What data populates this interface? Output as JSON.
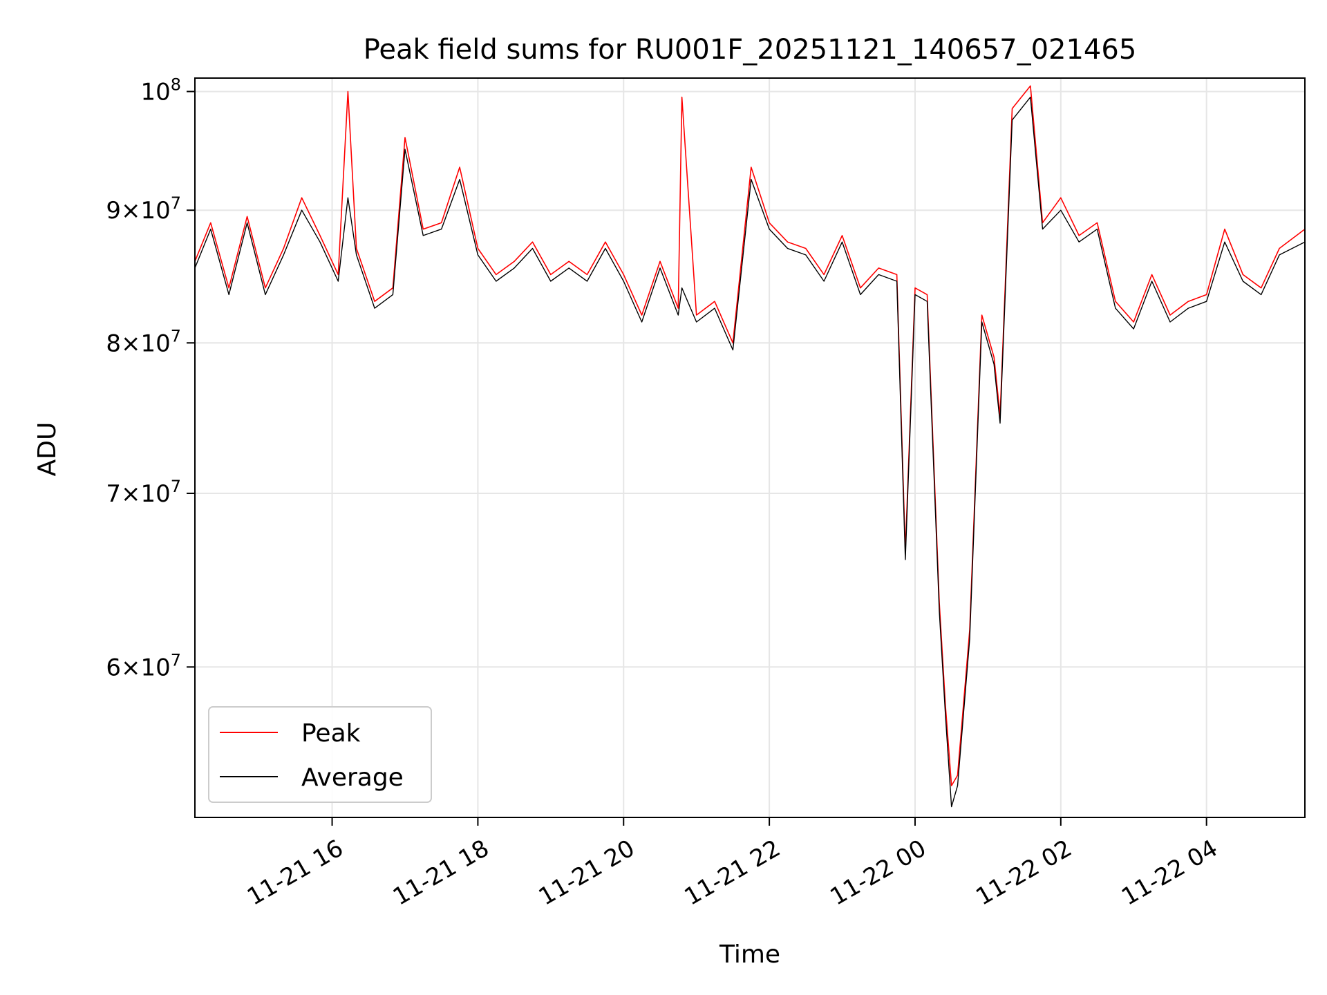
{
  "chart_data": {
    "type": "line",
    "title": "Peak field sums for RU001F_20251121_140657_021465",
    "xlabel": "Time",
    "ylabel": "ADU",
    "y_scale": "log",
    "x_range": [
      "11-21 14:07",
      "11-22 05:21"
    ],
    "ylim": [
      52500000,
      101200000
    ],
    "grid": true,
    "legend_position": "lower-left",
    "x_ticks": [
      "11-21 16",
      "11-21 18",
      "11-21 20",
      "11-21 22",
      "11-22 00",
      "11-22 02",
      "11-22 04"
    ],
    "y_ticks": [
      {
        "value": 60000000,
        "mantissa": "6",
        "base": "×10",
        "exp": "7"
      },
      {
        "value": 70000000,
        "mantissa": "7",
        "base": "×10",
        "exp": "7"
      },
      {
        "value": 80000000,
        "mantissa": "8",
        "base": "×10",
        "exp": "7"
      },
      {
        "value": 90000000,
        "mantissa": "9",
        "base": "×10",
        "exp": "7"
      },
      {
        "value": 100000000,
        "mantissa": "",
        "base": "10",
        "exp": "8"
      }
    ],
    "series": [
      {
        "name": "Peak",
        "color": "#ff0000",
        "x": [
          "11-21 14:07",
          "11-21 14:20",
          "11-21 14:35",
          "11-21 14:50",
          "11-21 15:05",
          "11-21 15:20",
          "11-21 15:35",
          "11-21 15:50",
          "11-21 16:05",
          "11-21 16:13",
          "11-21 16:20",
          "11-21 16:35",
          "11-21 16:50",
          "11-21 17:00",
          "11-21 17:15",
          "11-21 17:30",
          "11-21 17:45",
          "11-21 18:00",
          "11-21 18:15",
          "11-21 18:30",
          "11-21 18:45",
          "11-21 19:00",
          "11-21 19:15",
          "11-21 19:30",
          "11-21 19:45",
          "11-21 20:00",
          "11-21 20:15",
          "11-21 20:30",
          "11-21 20:45",
          "11-21 20:48",
          "11-21 21:00",
          "11-21 21:15",
          "11-21 21:30",
          "11-21 21:45",
          "11-21 22:00",
          "11-21 22:15",
          "11-21 22:30",
          "11-21 22:45",
          "11-21 23:00",
          "11-21 23:15",
          "11-21 23:30",
          "11-21 23:45",
          "11-21 23:52",
          "11-22 00:00",
          "11-22 00:10",
          "11-22 00:20",
          "11-22 00:25",
          "11-22 00:30",
          "11-22 00:35",
          "11-22 00:45",
          "11-22 00:55",
          "11-22 01:05",
          "11-22 01:10",
          "11-22 01:20",
          "11-22 01:35",
          "11-22 01:45",
          "11-22 02:00",
          "11-22 02:15",
          "11-22 02:30",
          "11-22 02:45",
          "11-22 03:00",
          "11-22 03:15",
          "11-22 03:30",
          "11-22 03:45",
          "11-22 04:00",
          "11-22 04:15",
          "11-22 04:30",
          "11-22 04:45",
          "11-22 05:00",
          "11-22 05:21"
        ],
        "values": [
          86000000,
          89000000,
          84000000,
          89500000,
          84000000,
          87000000,
          91000000,
          88000000,
          85000000,
          100000000,
          87000000,
          83000000,
          84000000,
          96000000,
          88500000,
          89000000,
          93500000,
          87000000,
          85000000,
          86000000,
          87500000,
          85000000,
          86000000,
          85000000,
          87500000,
          85000000,
          82000000,
          86000000,
          82500000,
          99500000,
          82000000,
          83000000,
          80000000,
          93500000,
          89000000,
          87500000,
          87000000,
          85000000,
          88000000,
          84000000,
          85500000,
          85000000,
          66500000,
          84000000,
          83500000,
          63500000,
          58000000,
          54000000,
          54500000,
          62000000,
          82000000,
          79000000,
          75000000,
          98500000,
          100500000,
          89000000,
          91000000,
          88000000,
          89000000,
          83000000,
          81500000,
          85000000,
          82000000,
          83000000,
          83500000,
          88500000,
          85000000,
          84000000,
          87000000,
          88500000
        ],
        "values_note": "approximate reading"
      },
      {
        "name": "Average",
        "color": "#000000",
        "x": [
          "11-21 14:07",
          "11-21 14:20",
          "11-21 14:35",
          "11-21 14:50",
          "11-21 15:05",
          "11-21 15:20",
          "11-21 15:35",
          "11-21 15:50",
          "11-21 16:05",
          "11-21 16:13",
          "11-21 16:20",
          "11-21 16:35",
          "11-21 16:50",
          "11-21 17:00",
          "11-21 17:15",
          "11-21 17:30",
          "11-21 17:45",
          "11-21 18:00",
          "11-21 18:15",
          "11-21 18:30",
          "11-21 18:45",
          "11-21 19:00",
          "11-21 19:15",
          "11-21 19:30",
          "11-21 19:45",
          "11-21 20:00",
          "11-21 20:15",
          "11-21 20:30",
          "11-21 20:45",
          "11-21 20:48",
          "11-21 21:00",
          "11-21 21:15",
          "11-21 21:30",
          "11-21 21:45",
          "11-21 22:00",
          "11-21 22:15",
          "11-21 22:30",
          "11-21 22:45",
          "11-21 23:00",
          "11-21 23:15",
          "11-21 23:30",
          "11-21 23:45",
          "11-21 23:52",
          "11-22 00:00",
          "11-22 00:10",
          "11-22 00:20",
          "11-22 00:25",
          "11-22 00:30",
          "11-22 00:35",
          "11-22 00:45",
          "11-22 00:55",
          "11-22 01:05",
          "11-22 01:10",
          "11-22 01:20",
          "11-22 01:35",
          "11-22 01:45",
          "11-22 02:00",
          "11-22 02:15",
          "11-22 02:30",
          "11-22 02:45",
          "11-22 03:00",
          "11-22 03:15",
          "11-22 03:30",
          "11-22 03:45",
          "11-22 04:00",
          "11-22 04:15",
          "11-22 04:30",
          "11-22 04:45",
          "11-22 05:00",
          "11-22 05:21"
        ],
        "values": [
          85500000,
          88500000,
          83500000,
          89000000,
          83500000,
          86500000,
          90000000,
          87500000,
          84500000,
          91000000,
          86500000,
          82500000,
          83500000,
          95000000,
          88000000,
          88500000,
          92500000,
          86500000,
          84500000,
          85500000,
          87000000,
          84500000,
          85500000,
          84500000,
          87000000,
          84500000,
          81500000,
          85500000,
          82000000,
          84000000,
          81500000,
          82500000,
          79500000,
          92500000,
          88500000,
          87000000,
          86500000,
          84500000,
          87500000,
          83500000,
          85000000,
          84500000,
          66000000,
          83500000,
          83000000,
          63000000,
          57500000,
          53000000,
          54000000,
          61500000,
          81500000,
          78500000,
          74500000,
          97500000,
          99500000,
          88500000,
          90000000,
          87500000,
          88500000,
          82500000,
          81000000,
          84500000,
          81500000,
          82500000,
          83000000,
          87500000,
          84500000,
          83500000,
          86500000,
          87500000
        ],
        "values_note": "approximate reading"
      }
    ]
  }
}
